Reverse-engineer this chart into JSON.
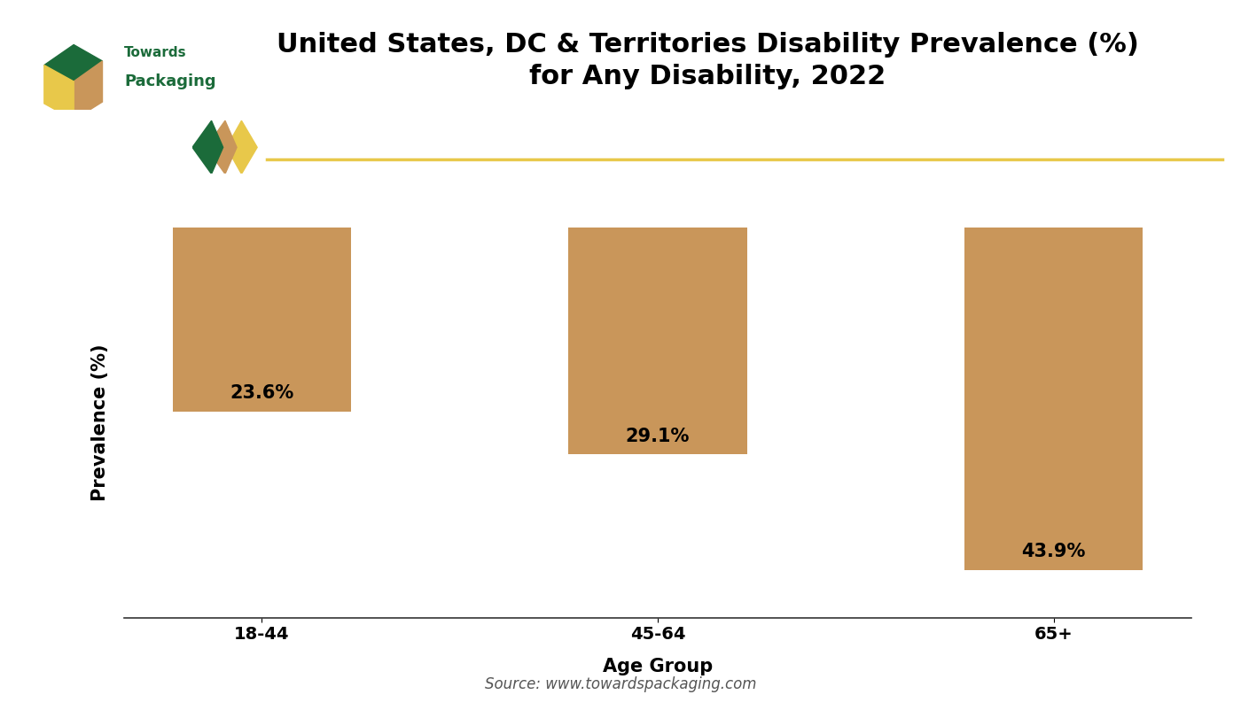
{
  "categories": [
    "18-44",
    "45-64",
    "65+"
  ],
  "values": [
    23.6,
    29.1,
    43.9
  ],
  "labels": [
    "23.6%",
    "29.1%",
    "43.9%"
  ],
  "bar_color": "#C9965A",
  "title_line1": "United States, DC & Territories Disability Prevalence (%)",
  "title_line2": "for Any Disability, 2022",
  "xlabel": "Age Group",
  "ylabel": "Prevalence (%)",
  "ylim_min": 0,
  "ylim_max": 50,
  "background_color": "#ffffff",
  "grid_color": "#e0e0e0",
  "source_text": "Source: www.towardspackaging.com",
  "title_fontsize": 22,
  "label_fontsize": 15,
  "axis_label_fontsize": 15,
  "tick_fontsize": 14,
  "source_fontsize": 12,
  "separator_color": "#E8C84A",
  "logo_green": "#1B6B3A",
  "logo_tan": "#C9965A",
  "logo_yellow": "#E8C84A"
}
